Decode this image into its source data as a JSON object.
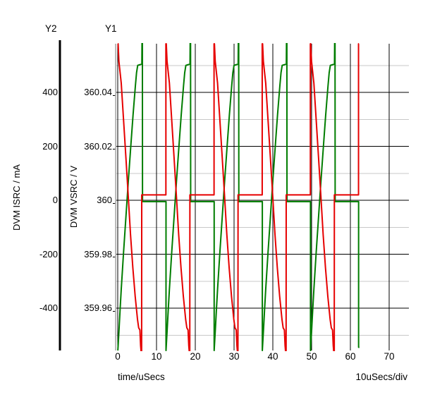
{
  "header": {
    "y2_label": "Y2",
    "y1_label": "Y1"
  },
  "chart_data": {
    "type": "line",
    "title": "",
    "x_axis": {
      "label": "time/uSecs",
      "units_per_div": "10uSecs/div",
      "ticks": [
        0,
        10,
        20,
        30,
        40,
        50,
        60,
        70
      ],
      "tick_labels": [
        "0",
        "10",
        "20",
        "30",
        "40",
        "50",
        "60",
        "70"
      ],
      "range": [
        0,
        75.5
      ]
    },
    "y1_axis": {
      "label": "DVM VSRC / V",
      "ticks": [
        360.04,
        360.02,
        360.0,
        359.98,
        359.96
      ],
      "tick_labels": [
        "360.04",
        "360.02",
        "360",
        "359.98",
        "359.96"
      ],
      "minor_ticks": [
        360.05,
        360.03,
        360.01,
        359.99,
        359.97,
        359.95
      ],
      "range": [
        359.9443,
        360.058
      ]
    },
    "y2_axis": {
      "label": "DVM ISRC / mA",
      "ticks": [
        400,
        200,
        0,
        -200,
        -400
      ],
      "tick_labels": [
        "400",
        "200",
        "0",
        "-200",
        "-400"
      ],
      "range": [
        -557,
        580
      ]
    },
    "grid": {
      "major_color": "#000000",
      "minor_color": "#c8c8c8"
    },
    "period_us": 12.42,
    "cycles": 5,
    "end_time_us": 62.1,
    "series": [
      {
        "name": "DVM VSRC",
        "axis": "y1",
        "color": "#007d00",
        "cycle_points": [
          [
            0.03,
            359.9995
          ],
          [
            0.03,
            359.9443
          ],
          [
            0.31,
            359.9514
          ],
          [
            0.6,
            359.9592
          ],
          [
            0.91,
            359.9671
          ],
          [
            1.51,
            359.9809
          ],
          [
            2.12,
            359.994
          ],
          [
            2.73,
            360.0071
          ],
          [
            3.33,
            360.0193
          ],
          [
            3.95,
            360.0316
          ],
          [
            4.55,
            360.0424
          ],
          [
            4.85,
            360.0473
          ],
          [
            5.15,
            360.05
          ],
          [
            6.22,
            360.0505
          ],
          [
            6.26,
            360.0585
          ],
          [
            6.36,
            360.0585
          ],
          [
            6.39,
            359.9995
          ],
          [
            12.42,
            359.9995
          ]
        ],
        "final_points": [
          [
            62.12,
            359.9995
          ],
          [
            62.12,
            359.9455
          ],
          [
            62.33,
            359.9455
          ]
        ]
      },
      {
        "name": "DVM ISRC",
        "axis": "y2",
        "color": "#e60000",
        "cycle_points": [
          [
            0.0,
            20
          ],
          [
            0.0,
            580
          ],
          [
            0.1,
            580
          ],
          [
            0.3,
            515
          ],
          [
            0.9,
            435
          ],
          [
            1.5,
            298
          ],
          [
            2.1,
            160
          ],
          [
            2.7,
            18
          ],
          [
            3.3,
            -128
          ],
          [
            3.9,
            -251
          ],
          [
            4.5,
            -356
          ],
          [
            5.1,
            -442
          ],
          [
            5.4,
            -473
          ],
          [
            5.72,
            -481
          ],
          [
            5.9,
            -539
          ],
          [
            6.02,
            -560
          ],
          [
            6.16,
            -560
          ],
          [
            6.19,
            20
          ],
          [
            12.42,
            20
          ]
        ],
        "final_points": [
          [
            62.1,
            20
          ],
          [
            62.1,
            580
          ],
          [
            62.21,
            580
          ]
        ]
      }
    ]
  }
}
